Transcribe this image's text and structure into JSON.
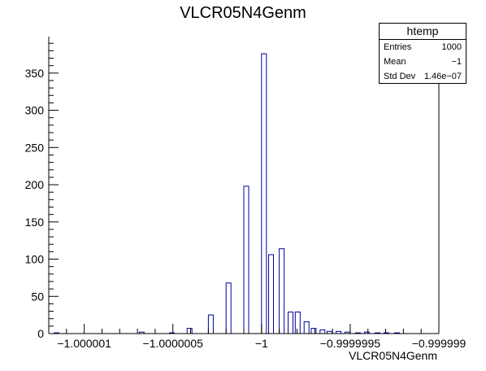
{
  "chart_data": {
    "type": "bar",
    "title": "VLCR05N4Genm",
    "xlabel": "VLCR05N4Genm",
    "ylabel": "",
    "xlim": [
      -1.0000012,
      -0.999999
    ],
    "ylim": [
      0,
      399
    ],
    "x_ticks": [
      {
        "value": -1.000001,
        "label": "−1.000001"
      },
      {
        "value": -1.0000005,
        "label": "−1.0000005"
      },
      {
        "value": -1.0,
        "label": "−1"
      },
      {
        "value": -0.9999995,
        "label": "−0.9999995"
      },
      {
        "value": -0.999999,
        "label": "−0.999999"
      }
    ],
    "y_ticks": [
      0,
      50,
      100,
      150,
      200,
      250,
      300,
      350
    ],
    "bin_width": 2.75e-08,
    "bins": [
      {
        "x": -1.00000117,
        "count": 1
      },
      {
        "x": -1.00000069,
        "count": 2
      },
      {
        "x": -1.00000052,
        "count": 1
      },
      {
        "x": -1.00000042,
        "count": 7
      },
      {
        "x": -1.0000003,
        "count": 25
      },
      {
        "x": -1.0000002,
        "count": 68
      },
      {
        "x": -1.0000001,
        "count": 198
      },
      {
        "x": -1.0,
        "count": 376
      },
      {
        "x": -0.99999996,
        "count": 106
      },
      {
        "x": -0.9999999,
        "count": 114
      },
      {
        "x": -0.99999985,
        "count": 29
      },
      {
        "x": -0.99999981,
        "count": 29
      },
      {
        "x": -0.99999976,
        "count": 16
      },
      {
        "x": -0.99999972,
        "count": 7
      },
      {
        "x": -0.99999967,
        "count": 5
      },
      {
        "x": -0.99999963,
        "count": 3
      },
      {
        "x": -0.99999958,
        "count": 3
      },
      {
        "x": -0.99999953,
        "count": 2
      },
      {
        "x": -0.99999947,
        "count": 1
      },
      {
        "x": -0.99999942,
        "count": 2
      },
      {
        "x": -0.99999936,
        "count": 1
      },
      {
        "x": -0.99999931,
        "count": 1
      },
      {
        "x": -0.99999925,
        "count": 1
      }
    ],
    "legend_position": "top-right",
    "grid": false
  },
  "stats_box": {
    "name": "htemp",
    "entries_label": "Entries",
    "entries_value": "1000",
    "mean_label": "Mean",
    "mean_value": "−1",
    "std_label": "Std Dev",
    "std_value": "1.46e−07"
  },
  "colors": {
    "bar_stroke": "#000099",
    "axis": "#000000",
    "background": "#ffffff"
  }
}
